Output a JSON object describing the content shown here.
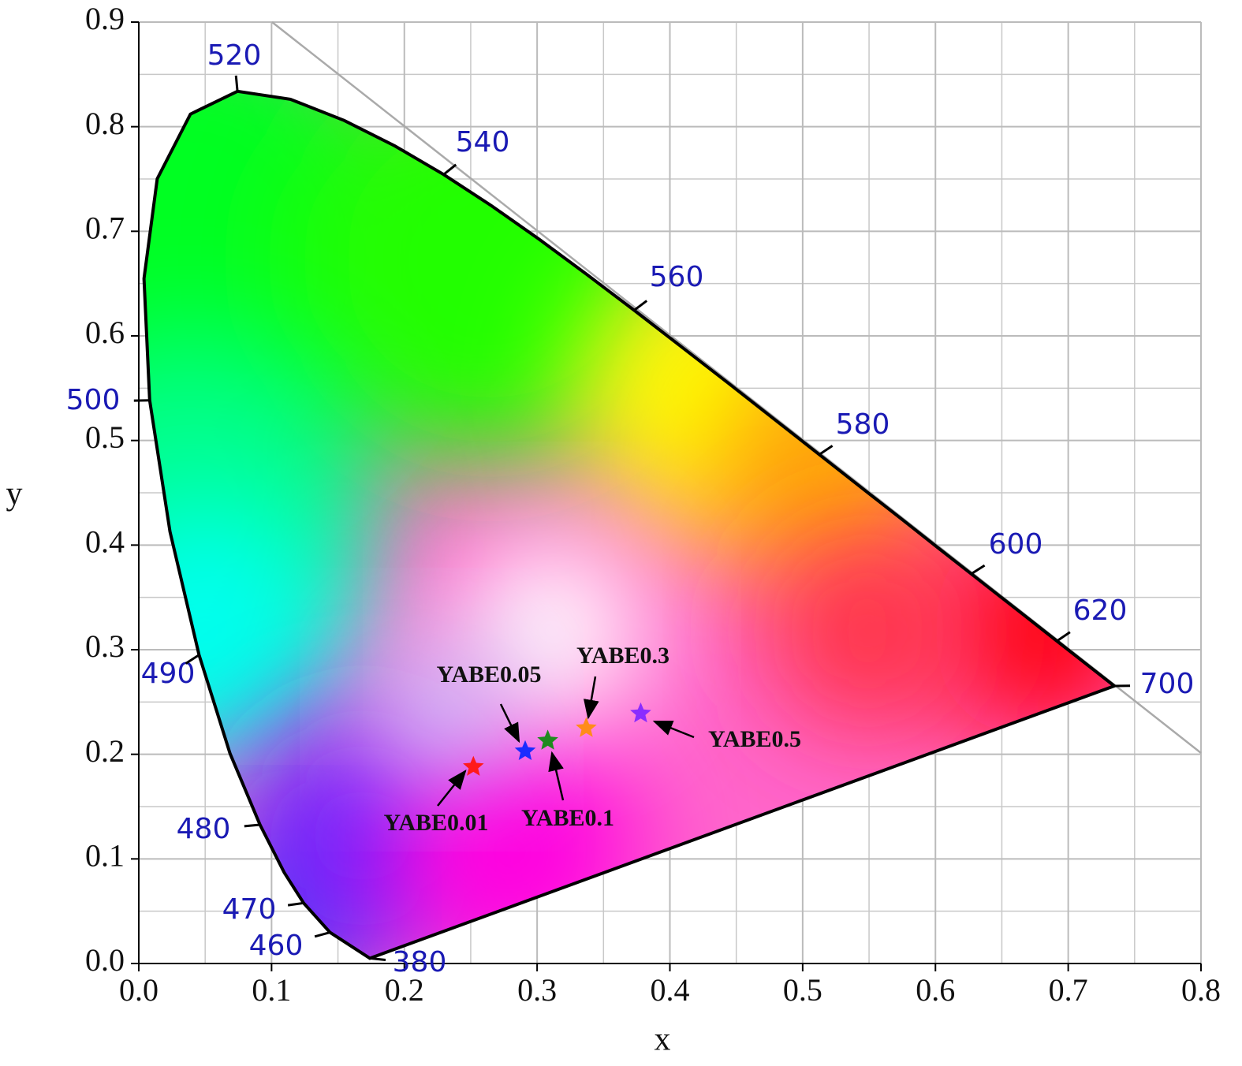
{
  "chart_data": {
    "type": "scatter",
    "x_label": "x",
    "y_label": "y",
    "xlim": [
      0,
      0.8
    ],
    "ylim": [
      0,
      0.9
    ],
    "xticks": [
      {
        "value": 0,
        "label": "0.0"
      },
      0.1,
      0.2,
      0.3,
      0.4,
      0.5,
      0.6,
      0.7,
      0.8
    ],
    "yticks": [
      {
        "value": 0,
        "label": "0.0"
      },
      0.1,
      0.2,
      0.3,
      0.4,
      0.5,
      0.6,
      0.7,
      0.8,
      0.9
    ],
    "grid": true,
    "wavelength_labels": [
      "380",
      "460",
      "470",
      "480",
      "490",
      "500",
      "520",
      "540",
      "560",
      "580",
      "600",
      "620",
      "700"
    ],
    "series": [
      {
        "name": "YABE0.01",
        "color": "#ff1a1a",
        "x": [
          0.252
        ],
        "values": [
          0.188
        ]
      },
      {
        "name": "YABE0.05",
        "color": "#1a2cff",
        "x": [
          0.291
        ],
        "values": [
          0.203
        ]
      },
      {
        "name": "YABE0.1",
        "color": "#1f8a1f",
        "x": [
          0.308
        ],
        "values": [
          0.213
        ]
      },
      {
        "name": "YABE0.3",
        "color": "#ff8c1a",
        "x": [
          0.337
        ],
        "values": [
          0.225
        ]
      },
      {
        "name": "YABE0.5",
        "color": "#8a2cff",
        "x": [
          0.378
        ],
        "values": [
          0.239
        ]
      }
    ]
  }
}
